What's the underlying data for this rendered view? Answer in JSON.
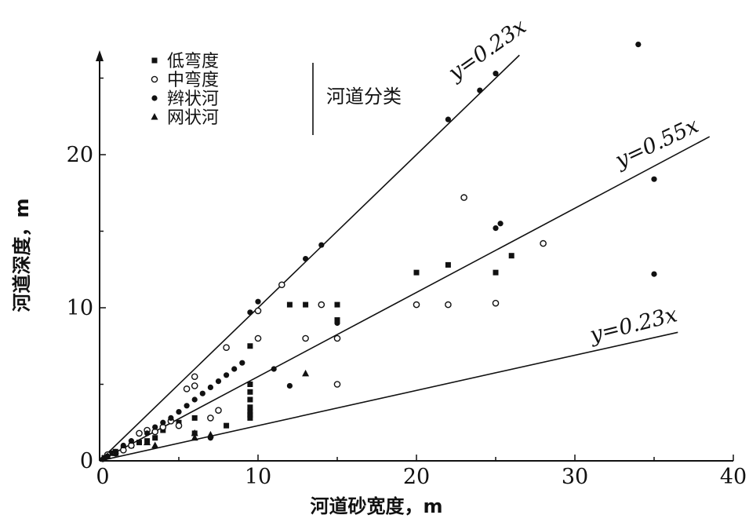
{
  "chart_data": {
    "type": "scatter",
    "title": "",
    "xlabel": "河道砂宽度，m",
    "ylabel": "河道深度，m",
    "xlim": [
      0,
      40
    ],
    "ylim": [
      0,
      26
    ],
    "x_ticks": [
      "0",
      "10",
      "20",
      "30",
      "40"
    ],
    "y_ticks": [
      "0",
      "10",
      "20"
    ],
    "grid": false,
    "legend_position": "top-left",
    "legend_group_label": "河道分类",
    "reference_lines": [
      {
        "label": "y=0.23x",
        "x_end": 26.5
      },
      {
        "label": "y=0.55x",
        "x_end": 38.5
      },
      {
        "label": "y=0.23x",
        "x_end": 36.5
      }
    ],
    "series": [
      {
        "name": "低弯度",
        "marker": "square",
        "points": [
          [
            0.3,
            0.2
          ],
          [
            0.5,
            0.3
          ],
          [
            0.8,
            0.5
          ],
          [
            1.0,
            0.6
          ],
          [
            1.5,
            0.8
          ],
          [
            2.0,
            1.0
          ],
          [
            2.5,
            1.2
          ],
          [
            3.0,
            1.3
          ],
          [
            3.5,
            1.5
          ],
          [
            4.0,
            2.0
          ],
          [
            5.0,
            2.5
          ],
          [
            6.0,
            1.8
          ],
          [
            6.0,
            2.8
          ],
          [
            8.0,
            2.3
          ],
          [
            9.5,
            7.5
          ],
          [
            9.5,
            5.0
          ],
          [
            9.5,
            4.5
          ],
          [
            9.5,
            4.0
          ],
          [
            9.5,
            3.5
          ],
          [
            9.5,
            3.2
          ],
          [
            9.5,
            3.0
          ],
          [
            9.5,
            2.8
          ],
          [
            12.0,
            10.2
          ],
          [
            13.0,
            10.2
          ],
          [
            15.0,
            10.2
          ],
          [
            15.0,
            9.2
          ],
          [
            20.0,
            12.3
          ],
          [
            22.0,
            12.8
          ],
          [
            25.0,
            12.3
          ],
          [
            26.0,
            13.4
          ]
        ]
      },
      {
        "name": "中弯度",
        "marker": "open-circle",
        "points": [
          [
            0.5,
            0.4
          ],
          [
            1.0,
            0.5
          ],
          [
            1.5,
            0.7
          ],
          [
            2.0,
            1.0
          ],
          [
            2.5,
            1.8
          ],
          [
            3.0,
            2.0
          ],
          [
            3.5,
            1.9
          ],
          [
            4.0,
            2.2
          ],
          [
            4.5,
            2.6
          ],
          [
            5.0,
            2.3
          ],
          [
            5.5,
            4.7
          ],
          [
            6.0,
            4.9
          ],
          [
            6.0,
            5.5
          ],
          [
            7.0,
            2.8
          ],
          [
            7.5,
            3.3
          ],
          [
            8.0,
            7.4
          ],
          [
            10.0,
            8.0
          ],
          [
            10.0,
            9.8
          ],
          [
            11.5,
            11.5
          ],
          [
            13.0,
            8.0
          ],
          [
            14.0,
            10.2
          ],
          [
            15.0,
            8.0
          ],
          [
            15.0,
            5.0
          ],
          [
            20.0,
            10.2
          ],
          [
            22.0,
            10.2
          ],
          [
            23.0,
            17.2
          ],
          [
            25.0,
            10.3
          ],
          [
            28.0,
            14.2
          ]
        ]
      },
      {
        "name": "辫状河",
        "marker": "filled-circle",
        "points": [
          [
            0.2,
            0.1
          ],
          [
            0.5,
            0.3
          ],
          [
            1.0,
            0.6
          ],
          [
            1.5,
            1.0
          ],
          [
            2.0,
            1.3
          ],
          [
            3.0,
            1.8
          ],
          [
            3.5,
            2.2
          ],
          [
            4.0,
            2.5
          ],
          [
            4.5,
            2.8
          ],
          [
            5.0,
            3.2
          ],
          [
            5.5,
            3.6
          ],
          [
            6.0,
            4.0
          ],
          [
            6.5,
            4.4
          ],
          [
            7.0,
            4.8
          ],
          [
            7.5,
            5.2
          ],
          [
            8.0,
            5.6
          ],
          [
            8.5,
            6.0
          ],
          [
            9.0,
            6.4
          ],
          [
            9.5,
            9.7
          ],
          [
            10.0,
            10.4
          ],
          [
            11.0,
            6.0
          ],
          [
            12.0,
            4.9
          ],
          [
            13.0,
            13.2
          ],
          [
            14.0,
            14.1
          ],
          [
            22.0,
            22.3
          ],
          [
            24.0,
            24.2
          ],
          [
            25.0,
            25.3
          ],
          [
            25.0,
            15.2
          ],
          [
            25.3,
            15.5
          ],
          [
            34.0,
            27.2
          ],
          [
            35.0,
            18.4
          ],
          [
            35.0,
            12.2
          ],
          [
            7.0,
            1.5
          ],
          [
            15.0,
            9.0
          ]
        ]
      },
      {
        "name": "网状河",
        "marker": "triangle",
        "points": [
          [
            0.5,
            0.3
          ],
          [
            1.0,
            0.5
          ],
          [
            3.0,
            1.2
          ],
          [
            3.5,
            1.0
          ],
          [
            6.0,
            1.5
          ],
          [
            6.0,
            1.8
          ],
          [
            13.0,
            5.7
          ],
          [
            7.0,
            1.7
          ]
        ]
      }
    ]
  }
}
